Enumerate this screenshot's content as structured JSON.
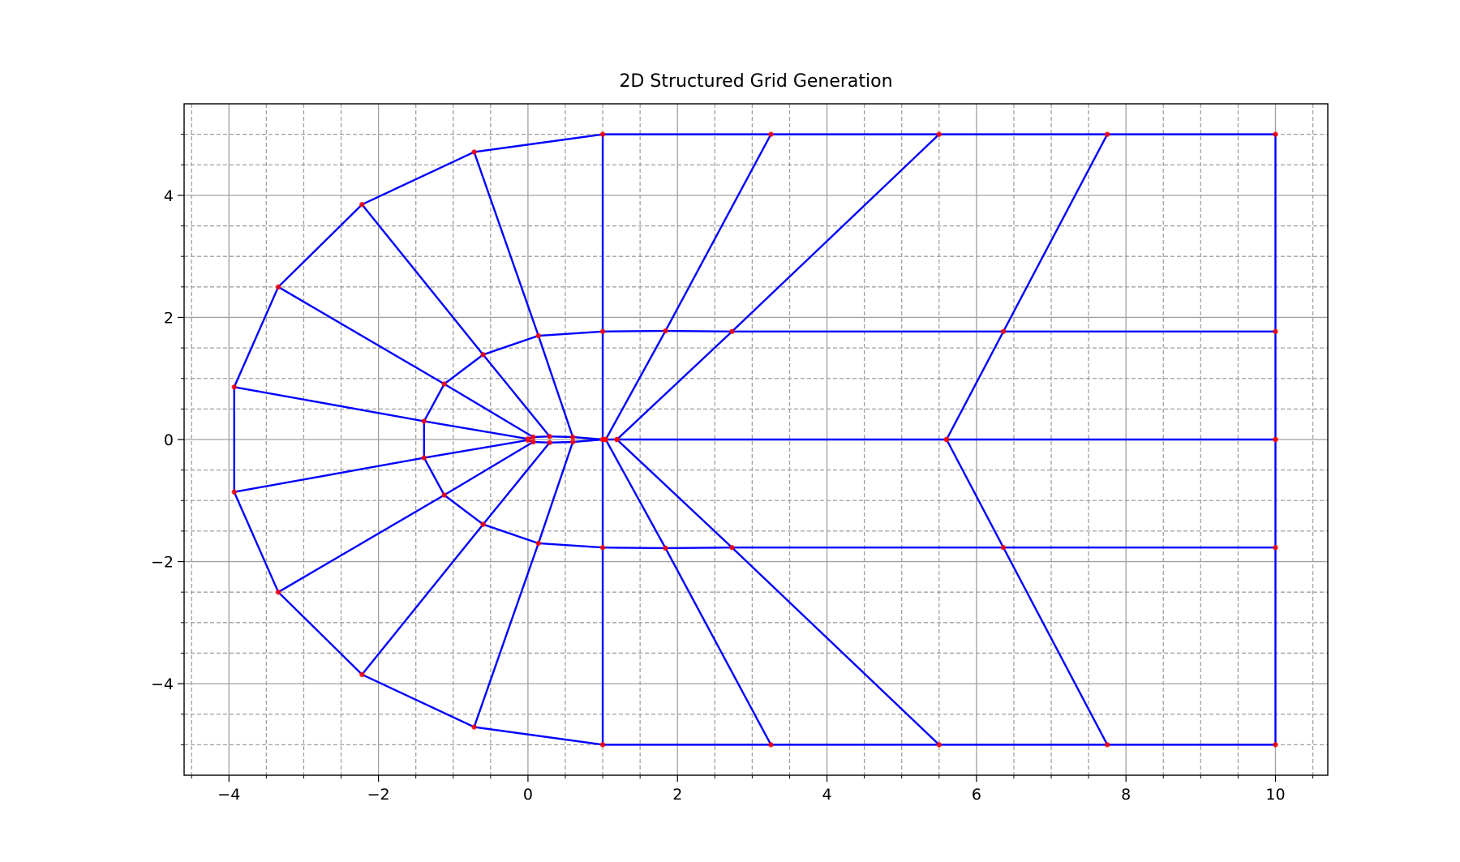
{
  "chart_data": {
    "type": "mesh",
    "title": "2D Structured Grid Generation",
    "x": [
      [
        10,
        5.6,
        1.19,
        1.04,
        1,
        0.6,
        0.29,
        0.07,
        0,
        0,
        0.07,
        0.29,
        0.6,
        1,
        1.04,
        1.19,
        5.6,
        10
      ],
      [
        10,
        6.36,
        2.73,
        1.84,
        1,
        0.14,
        -0.6,
        -1.12,
        -1.39,
        -1.39,
        -1.12,
        -0.6,
        0.14,
        1,
        1.84,
        2.73,
        6.36,
        10
      ],
      [
        10,
        7.75,
        5.5,
        3.25,
        1,
        -0.72,
        -2.22,
        -3.34,
        -3.93,
        -3.93,
        -3.34,
        -2.22,
        -0.72,
        1,
        3.25,
        5.5,
        7.75,
        10
      ]
    ],
    "y": [
      [
        0,
        0,
        0,
        0,
        0,
        -0.04,
        -0.05,
        -0.04,
        -0.01,
        0.01,
        0.04,
        0.05,
        0.04,
        0,
        0,
        0,
        0,
        0
      ],
      [
        -1.77,
        -1.77,
        -1.77,
        -1.78,
        -1.77,
        -1.7,
        -1.39,
        -0.91,
        -0.3,
        0.3,
        0.91,
        1.39,
        1.7,
        1.77,
        1.78,
        1.77,
        1.77,
        1.77
      ],
      [
        -5,
        -5,
        -5,
        -5,
        -5,
        -4.71,
        -3.85,
        -2.5,
        -0.86,
        0.86,
        2.5,
        3.85,
        4.71,
        5,
        5,
        5,
        5,
        5
      ]
    ],
    "line_color": "#0000ff",
    "point_color": "#ff0000",
    "xlim": [
      -4.6,
      10.7
    ],
    "ylim": [
      -5.5,
      5.5
    ],
    "xticks": [
      {
        "value": -4,
        "label": "−4"
      },
      {
        "value": -2,
        "label": "−2"
      },
      0,
      2,
      4,
      6,
      8,
      10
    ],
    "yticks": [
      {
        "value": -4,
        "label": "−4"
      },
      {
        "value": -2,
        "label": "−2"
      },
      0,
      2,
      4
    ],
    "xminorticks": [
      -4.5,
      -3.5,
      -3,
      -2.5,
      -1.5,
      -1,
      -0.5,
      0.5,
      1,
      1.5,
      2.5,
      3,
      3.5,
      4.5,
      5,
      5.5,
      6.5,
      7,
      7.5,
      8.5,
      9,
      9.5,
      10.5
    ],
    "yminorticks": [
      -5,
      -4.5,
      -3.5,
      -3,
      -2.5,
      -1.5,
      -1,
      -0.5,
      0.5,
      1,
      1.5,
      2.5,
      3,
      3.5,
      4.5,
      5
    ],
    "grid": true,
    "minor_grid": true
  }
}
